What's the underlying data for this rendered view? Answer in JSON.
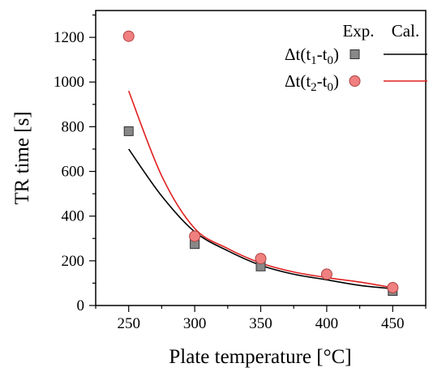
{
  "chart_data": {
    "type": "scatter",
    "title": "",
    "xlabel": "Plate temperature  [°C]",
    "ylabel": "TR time  [s]",
    "xlim": [
      225,
      475
    ],
    "ylim": [
      0,
      1320
    ],
    "x_ticks": [
      250,
      300,
      350,
      400,
      450
    ],
    "y_ticks": [
      0,
      200,
      400,
      600,
      800,
      1000,
      1200
    ],
    "grid": false,
    "legend": {
      "placement": "top-right",
      "header_exp": "Exp.",
      "header_cal": "Cal.",
      "entries": [
        {
          "base": "Δt(t",
          "sub1": "1",
          "mid": "-t",
          "sub2": "0",
          "tail": ")"
        },
        {
          "base": "Δt(t",
          "sub1": "2",
          "mid": "-t",
          "sub2": "0",
          "tail": ")"
        }
      ]
    },
    "series": [
      {
        "marker": "square",
        "color": "#888888",
        "curve_color": "#000000",
        "x": [
          250,
          300,
          350,
          450
        ],
        "y": [
          780,
          275,
          175,
          65
        ],
        "fit_x": [
          250,
          275,
          300,
          325,
          350,
          375,
          400,
          425,
          450
        ],
        "fit_y": [
          700,
          490,
          330,
          245,
          180,
          140,
          115,
          90,
          75
        ]
      },
      {
        "marker": "circle",
        "color": "#f08080",
        "curve_color": "#e02020",
        "x": [
          250,
          300,
          350,
          400,
          450
        ],
        "y": [
          1205,
          310,
          210,
          140,
          80
        ],
        "fit_x": [
          250,
          275,
          300,
          325,
          350,
          375,
          400,
          425,
          450
        ],
        "fit_y": [
          960,
          580,
          345,
          255,
          190,
          150,
          125,
          105,
          80
        ]
      }
    ]
  }
}
